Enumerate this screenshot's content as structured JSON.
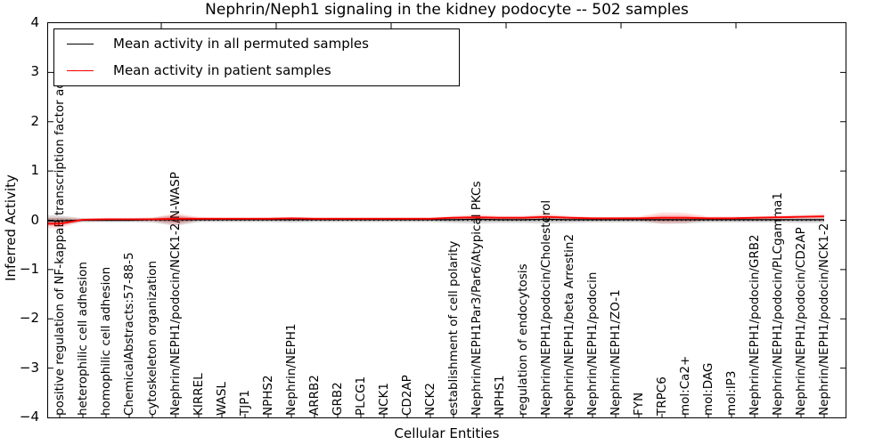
{
  "chart_data": {
    "type": "line",
    "title": "Nephrin/Neph1 signaling in the kidney podocyte -- 502 samples",
    "xlabel": "Cellular Entities",
    "ylabel": "Inferred Activity",
    "ylim": [
      -4,
      4
    ],
    "ytick_labels": [
      "4",
      "3",
      "2",
      "1",
      "0",
      "−1",
      "−2",
      "−3",
      "−4"
    ],
    "grid": false,
    "legend_position": "upper left",
    "zero_line": {
      "y": 0,
      "style": "dotted",
      "color": "#000000"
    },
    "colors": {
      "permuted": "#000000",
      "patient": "#ff0000",
      "background": "#ffffff"
    },
    "categories": [
      "positive regulation of NF-kappaB transcription factor activity",
      "heterophilic cell adhesion",
      "homophilic cell adhesion",
      "ChemicalAbstracts:57-88-5",
      "cytoskeleton organization",
      "Nephrin/NEPH1/podocin/NCK1-2/N-WASP",
      "KIRREL",
      "WASL",
      "TJP1",
      "NPHS2",
      "Nephrin/NEPH1",
      "ARRB2",
      "GRB2",
      "PLCG1",
      "NCK1",
      "CD2AP",
      "NCK2",
      "establishment of cell polarity",
      "Nephrin/NEPH1Par3/Par6/Atypical PKCs",
      "NPHS1",
      "regulation of endocytosis",
      "Nephrin/NEPH1/podocin/Cholesterol",
      "Nephrin/NEPH1/beta Arrestin2",
      "Nephrin/NEPH1/podocin",
      "Nephrin/NEPH1/ZO-1",
      "FYN",
      "TRPC6",
      "mol:Ca2+",
      "mol:DAG",
      "mol:IP3",
      "Nephrin/NEPH1/podocin/GRB2",
      "Nephrin/NEPH1/podocin/PLCgamma1",
      "Nephrin/NEPH1/podocin/CD2AP",
      "Nephrin/NEPH1/podocin/NCK1-2"
    ],
    "series": [
      {
        "name": "Mean activity in all permuted samples",
        "color": "#000000",
        "values": [
          -0.01,
          0.0,
          0.0,
          0.0,
          0.01,
          0.01,
          0.01,
          0.01,
          0.01,
          0.01,
          0.01,
          0.01,
          0.01,
          0.01,
          0.01,
          0.01,
          0.01,
          0.01,
          0.02,
          0.01,
          0.01,
          0.02,
          0.01,
          0.01,
          0.01,
          0.01,
          0.01,
          0.01,
          0.01,
          0.01,
          0.01,
          0.01,
          0.01,
          0.01
        ],
        "band_upper": [
          0.1,
          0.04,
          0.04,
          0.04,
          0.05,
          0.11,
          0.04,
          0.04,
          0.04,
          0.04,
          0.05,
          0.04,
          0.04,
          0.04,
          0.04,
          0.04,
          0.04,
          0.06,
          0.07,
          0.06,
          0.06,
          0.07,
          0.06,
          0.05,
          0.05,
          0.05,
          0.07,
          0.07,
          0.05,
          0.05,
          0.05,
          0.05,
          0.06,
          0.06
        ],
        "band_lower": [
          -0.1,
          -0.04,
          -0.04,
          -0.04,
          -0.05,
          -0.11,
          -0.04,
          -0.04,
          -0.04,
          -0.04,
          -0.05,
          -0.04,
          -0.04,
          -0.04,
          -0.04,
          -0.04,
          -0.04,
          -0.06,
          -0.07,
          -0.06,
          -0.06,
          -0.07,
          -0.06,
          -0.05,
          -0.05,
          -0.05,
          -0.07,
          -0.07,
          -0.05,
          -0.05,
          -0.05,
          -0.05,
          -0.06,
          -0.06
        ]
      },
      {
        "name": "Mean activity in patient samples",
        "color": "#ff0000",
        "values": [
          -0.07,
          0.01,
          0.02,
          0.02,
          0.02,
          0.03,
          0.03,
          0.03,
          0.03,
          0.03,
          0.04,
          0.03,
          0.03,
          0.03,
          0.03,
          0.03,
          0.03,
          0.05,
          0.06,
          0.05,
          0.05,
          0.07,
          0.05,
          0.04,
          0.04,
          0.04,
          0.05,
          0.05,
          0.04,
          0.04,
          0.05,
          0.06,
          0.07,
          0.08
        ],
        "band_upper": [
          0.06,
          0.04,
          0.05,
          0.05,
          0.06,
          0.14,
          0.07,
          0.06,
          0.06,
          0.06,
          0.07,
          0.06,
          0.06,
          0.06,
          0.06,
          0.06,
          0.06,
          0.09,
          0.12,
          0.09,
          0.09,
          0.13,
          0.09,
          0.07,
          0.07,
          0.08,
          0.16,
          0.15,
          0.08,
          0.08,
          0.08,
          0.1,
          0.11,
          0.13
        ],
        "band_lower": [
          -0.16,
          -0.02,
          -0.01,
          -0.01,
          -0.02,
          -0.1,
          -0.01,
          0.0,
          0.0,
          0.0,
          0.01,
          0.0,
          0.0,
          0.0,
          0.0,
          0.0,
          0.0,
          0.01,
          0.01,
          0.01,
          0.01,
          0.01,
          0.01,
          0.01,
          0.01,
          0.0,
          -0.07,
          -0.06,
          0.01,
          0.01,
          0.01,
          0.02,
          0.03,
          0.03
        ]
      }
    ]
  }
}
